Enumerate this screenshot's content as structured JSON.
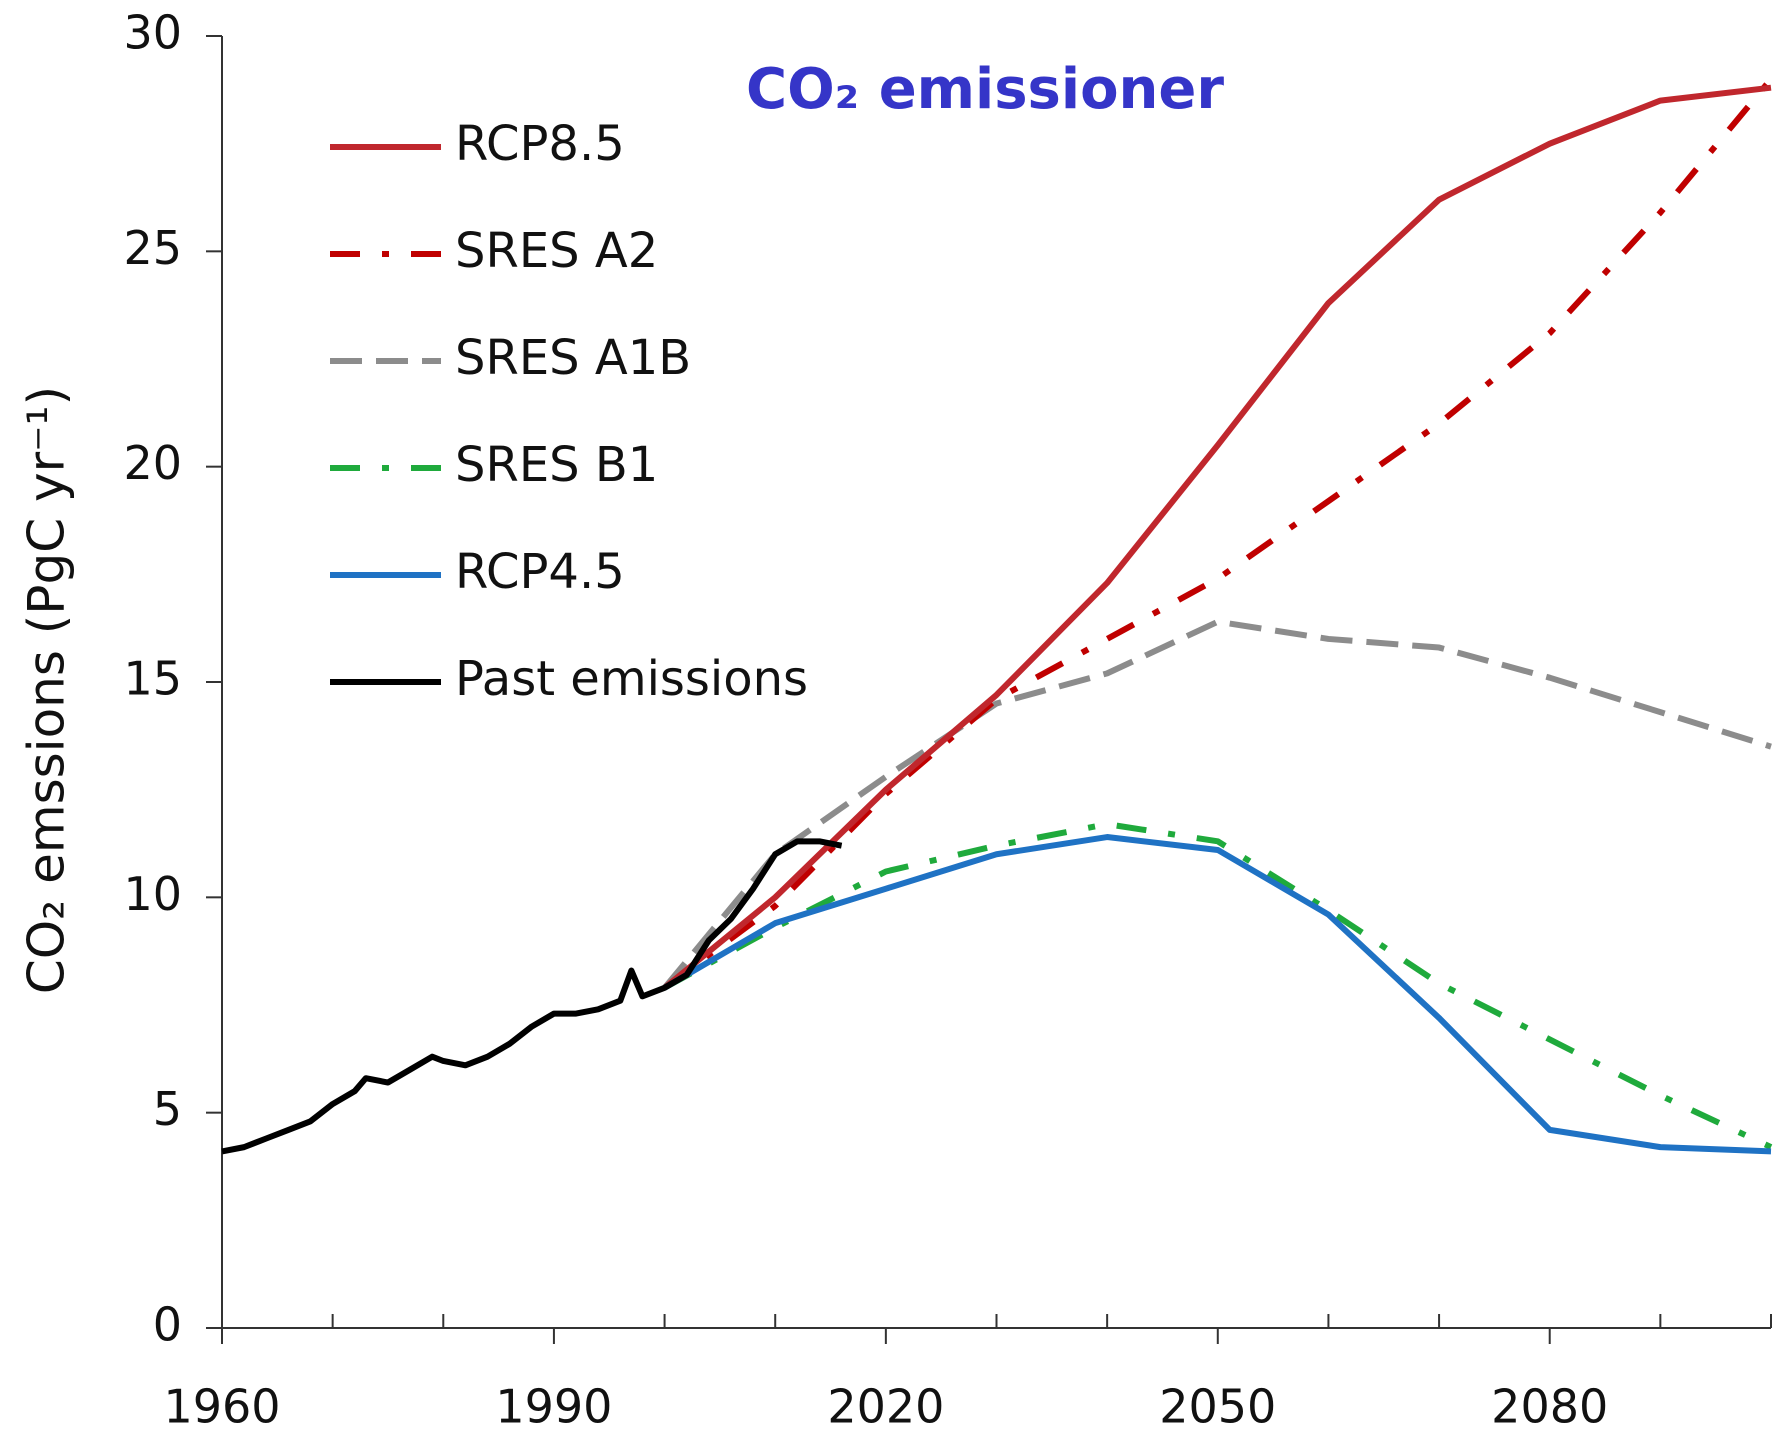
{
  "chart_data": {
    "type": "line",
    "title": "CO₂ emissioner",
    "ylabel": "CO₂ emssions  (PgC yr⁻¹)",
    "xlim": [
      1960,
      2100
    ],
    "ylim": [
      0,
      30
    ],
    "xticks": [
      1960,
      1990,
      2020,
      2050,
      2080
    ],
    "x_minor_ticks": [
      1970,
      1980,
      2000,
      2010,
      2030,
      2040,
      2060,
      2070,
      2090,
      2100
    ],
    "yticks": [
      0,
      5,
      10,
      15,
      20,
      25,
      30
    ],
    "grid": false,
    "legend": "upper left",
    "series": [
      {
        "name": "RCP8.5",
        "color": "#c0272d",
        "dash": "solid",
        "x": [
          2000,
          2010,
          2020,
          2030,
          2040,
          2050,
          2060,
          2070,
          2080,
          2090,
          2100
        ],
        "values": [
          7.9,
          10.0,
          12.5,
          14.7,
          17.3,
          20.5,
          23.8,
          26.2,
          27.5,
          28.5,
          28.8
        ]
      },
      {
        "name": "SRES A2",
        "color": "#c00000",
        "dash": "dash-dot",
        "x": [
          2000,
          2010,
          2020,
          2030,
          2040,
          2050,
          2060,
          2070,
          2080,
          2090,
          2100
        ],
        "values": [
          7.9,
          9.8,
          12.4,
          14.6,
          16.0,
          17.4,
          19.2,
          21.0,
          23.1,
          25.9,
          29.0
        ]
      },
      {
        "name": "SRES A1B",
        "color": "#8c8c8c",
        "dash": "dashed",
        "x": [
          2000,
          2010,
          2020,
          2030,
          2040,
          2050,
          2060,
          2070,
          2080,
          2090,
          2100
        ],
        "values": [
          7.9,
          11.0,
          12.8,
          14.5,
          15.2,
          16.4,
          16.0,
          15.8,
          15.1,
          14.3,
          13.5
        ]
      },
      {
        "name": "SRES B1",
        "color": "#1faa3c",
        "dash": "dash-dot",
        "x": [
          2000,
          2010,
          2020,
          2030,
          2040,
          2050,
          2060,
          2070,
          2080,
          2090,
          2100
        ],
        "values": [
          7.9,
          9.3,
          10.6,
          11.2,
          11.7,
          11.3,
          9.7,
          8.0,
          6.7,
          5.4,
          4.2
        ]
      },
      {
        "name": "RCP4.5",
        "color": "#1f72c4",
        "dash": "solid",
        "x": [
          2000,
          2010,
          2020,
          2030,
          2040,
          2050,
          2060,
          2070,
          2080,
          2090,
          2100
        ],
        "values": [
          7.9,
          9.4,
          10.2,
          11.0,
          11.4,
          11.1,
          9.6,
          7.2,
          4.6,
          4.2,
          4.1
        ]
      },
      {
        "name": "Past emissions",
        "color": "#000000",
        "dash": "solid",
        "x": [
          1960,
          1962,
          1964,
          1966,
          1968,
          1970,
          1972,
          1973,
          1975,
          1977,
          1979,
          1980,
          1982,
          1984,
          1986,
          1988,
          1990,
          1992,
          1994,
          1996,
          1997,
          1998,
          2000,
          2002,
          2004,
          2006,
          2008,
          2010,
          2012,
          2014,
          2016
        ],
        "values": [
          4.1,
          4.2,
          4.4,
          4.6,
          4.8,
          5.2,
          5.5,
          5.8,
          5.7,
          6.0,
          6.3,
          6.2,
          6.1,
          6.3,
          6.6,
          7.0,
          7.3,
          7.3,
          7.4,
          7.6,
          8.3,
          7.7,
          7.9,
          8.2,
          9.0,
          9.5,
          10.2,
          11.0,
          11.3,
          11.3,
          11.2
        ]
      }
    ]
  }
}
